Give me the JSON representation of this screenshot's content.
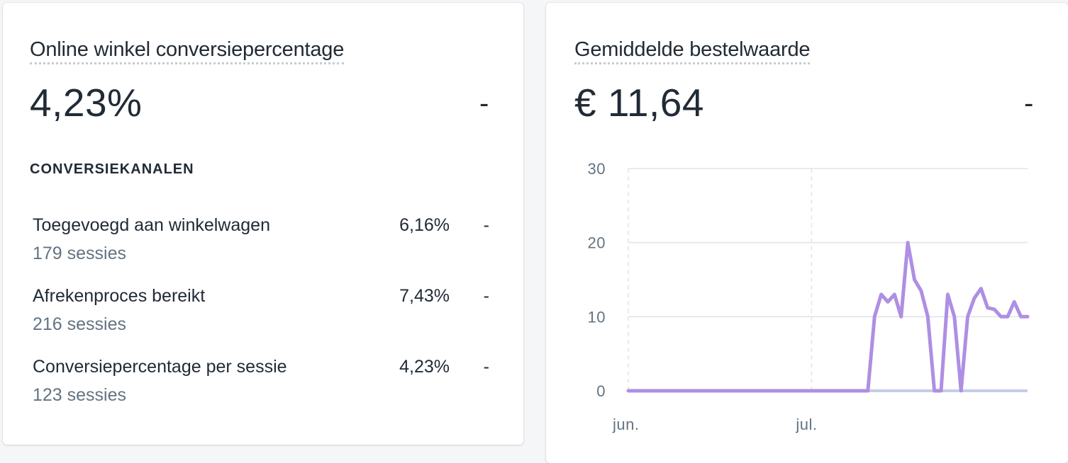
{
  "conversion_card": {
    "title": "Online winkel conversiepercentage",
    "value": "4,23%",
    "change": "-",
    "section_label": "CONVERSIEKANALEN",
    "rows": [
      {
        "label": "Toegevoegd aan winkelwagen",
        "sessions": "179 sessies",
        "value": "6,16%",
        "change": "-"
      },
      {
        "label": "Afrekenproces bereikt",
        "sessions": "216 sessies",
        "value": "7,43%",
        "change": "-"
      },
      {
        "label": "Conversiepercentage per sessie",
        "sessions": "123 sessies",
        "value": "4,23%",
        "change": "-"
      }
    ]
  },
  "order_value_card": {
    "title": "Gemiddelde bestelwaarde",
    "value": "€ 11,64",
    "change": "-"
  },
  "chart_data": {
    "type": "line",
    "title": "",
    "xlabel": "",
    "ylabel": "",
    "ylim": [
      0,
      30
    ],
    "yticks": [
      0,
      10,
      20,
      30
    ],
    "xtick_labels": [
      "jun.",
      "jul."
    ],
    "grid": true,
    "line_color": "#ae8fe3",
    "baseline_color": "#c3cfe8",
    "series": [
      {
        "values": [
          0,
          0,
          0,
          0,
          0,
          0,
          0,
          0,
          0,
          0,
          0,
          0,
          0,
          0,
          0,
          0,
          0,
          0,
          0,
          0,
          0,
          0,
          0,
          0,
          0,
          0,
          0,
          0,
          0,
          0,
          0,
          0,
          0,
          0,
          0,
          0,
          0,
          10,
          13,
          12,
          13,
          10,
          20,
          15,
          13.5,
          10,
          0,
          0,
          13,
          10,
          0,
          10,
          12.5,
          13.8,
          11.2,
          11,
          10,
          10,
          12,
          10,
          10
        ]
      }
    ]
  }
}
